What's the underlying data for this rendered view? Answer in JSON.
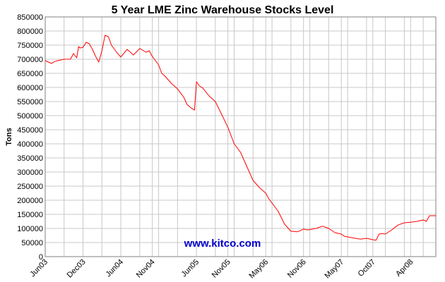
{
  "chart_data": {
    "type": "line",
    "title": "5 Year LME Zinc Warehouse Stocks Level",
    "xlabel": "",
    "ylabel": "Tons",
    "ylim": [
      0,
      850000
    ],
    "ytick_values": [
      0,
      50000,
      100000,
      150000,
      200000,
      250000,
      300000,
      350000,
      400000,
      450000,
      500000,
      550000,
      600000,
      650000,
      700000,
      750000,
      800000,
      850000
    ],
    "x_tick_labels": [
      "Jun03",
      "Dec03",
      "Jun04",
      "Nov04",
      "Jun05",
      "Nov05",
      "May06",
      "Nov06",
      "May07",
      "Oct07",
      "Apr08"
    ],
    "x_tick_positions_months": [
      0,
      6,
      12,
      17,
      24,
      29,
      35,
      41,
      47,
      52,
      58
    ],
    "xlim_months": [
      0,
      62
    ],
    "grid": true,
    "line_color": "#ff0000",
    "watermark": "www.kitco.com",
    "watermark_color": "#0000cc",
    "series": [
      {
        "x_months": [
          0,
          0.5,
          1,
          1.5,
          2,
          3,
          4,
          4.5,
          5,
          5.3,
          5.5,
          6,
          6.5,
          7,
          7.5,
          7.8,
          8,
          8.5,
          9,
          9.5,
          10,
          10.2,
          10.5,
          11,
          11.5,
          12,
          13,
          14,
          15,
          16,
          16.5,
          17,
          18,
          18.5,
          19,
          20,
          20.5,
          21,
          22,
          22.5,
          23,
          23.5,
          23.7,
          24,
          24.5,
          25,
          26,
          26.5,
          27,
          28,
          29,
          30,
          31,
          32,
          33,
          34,
          35,
          35.5,
          36,
          37,
          38,
          39,
          40,
          40.5,
          41,
          41.5,
          42,
          43,
          44,
          45,
          46,
          47,
          47.5,
          48,
          49,
          50,
          51,
          52,
          52.5,
          53,
          53.5,
          54,
          55,
          56,
          57,
          58,
          59,
          60,
          60.5,
          61,
          62
        ],
        "y": [
          695000,
          690000,
          685000,
          692000,
          695000,
          700000,
          700000,
          720000,
          705000,
          745000,
          740000,
          742000,
          760000,
          755000,
          735000,
          720000,
          710000,
          690000,
          730000,
          785000,
          780000,
          770000,
          750000,
          735000,
          720000,
          708000,
          735000,
          715000,
          738000,
          725000,
          730000,
          710000,
          680000,
          650000,
          640000,
          615000,
          605000,
          595000,
          565000,
          540000,
          530000,
          522000,
          520000,
          620000,
          605000,
          598000,
          570000,
          560000,
          550000,
          505000,
          458000,
          400000,
          370000,
          320000,
          270000,
          245000,
          225000,
          205000,
          190000,
          160000,
          115000,
          90000,
          88000,
          92000,
          98000,
          95000,
          96000,
          100000,
          108000,
          100000,
          85000,
          80000,
          72000,
          70000,
          66000,
          62000,
          65000,
          60000,
          58000,
          80000,
          82000,
          80000,
          95000,
          112000,
          120000,
          122000,
          125000,
          130000,
          125000,
          145000,
          145000
        ]
      }
    ]
  }
}
